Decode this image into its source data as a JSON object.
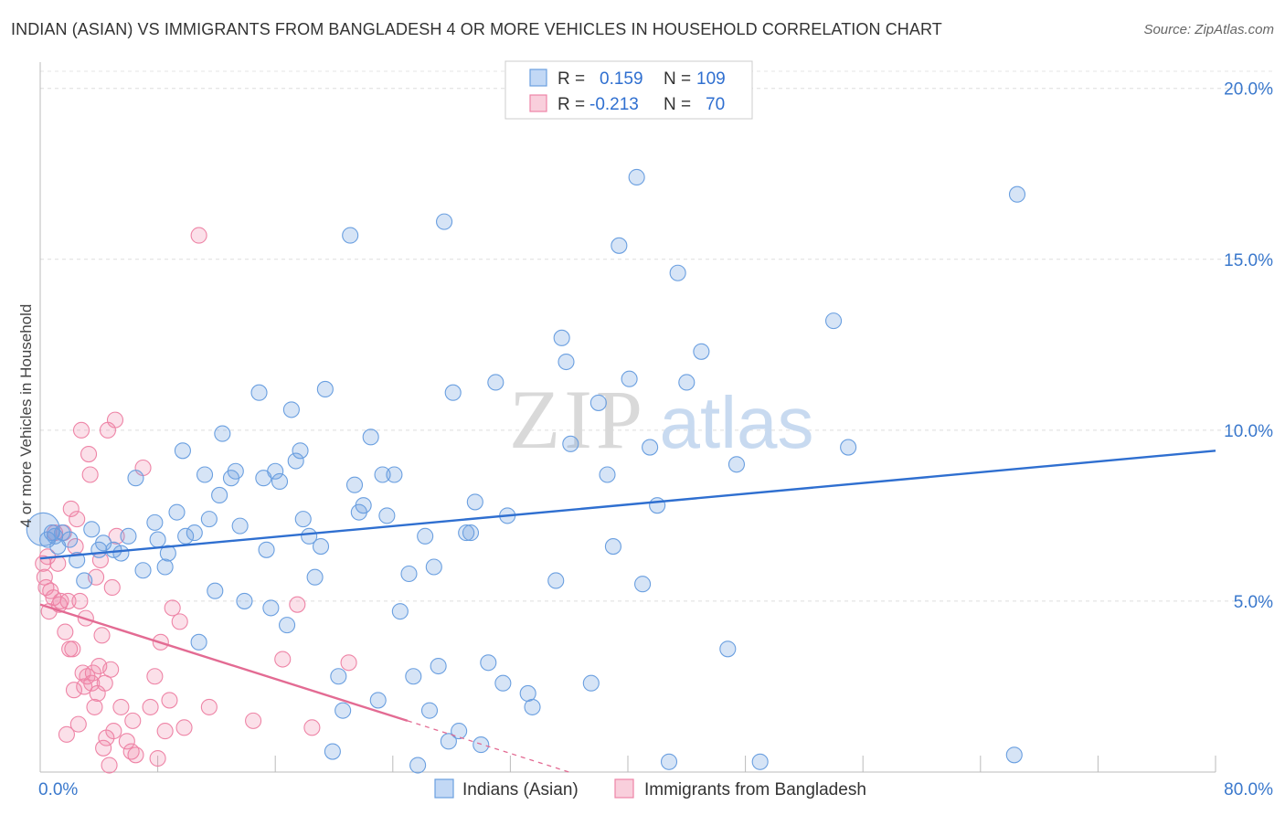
{
  "title": "INDIAN (ASIAN) VS IMMIGRANTS FROM BANGLADESH 4 OR MORE VEHICLES IN HOUSEHOLD CORRELATION CHART",
  "source": "Source: ZipAtlas.com",
  "watermark": {
    "zip": "ZIP",
    "atlas": "atlas"
  },
  "stats_legend": {
    "rows": [
      {
        "r_label": "R =",
        "r_value": "0.159",
        "n_label": "N =",
        "n_value": "109",
        "color": "#6a9fe0"
      },
      {
        "r_label": "R =",
        "r_value": "-0.213",
        "n_label": "N =",
        "n_value": "70",
        "color": "#ee84a6"
      }
    ]
  },
  "bottom_legend": [
    {
      "label": "Indians (Asian)",
      "color": "#6a9fe0"
    },
    {
      "label": "Immigrants from Bangladesh",
      "color": "#ee84a6"
    }
  ],
  "chart_data": {
    "type": "scatter",
    "xlabel": "",
    "ylabel": "4 or more Vehicles in Household",
    "xlim": [
      0,
      80
    ],
    "ylim": [
      0,
      20.5
    ],
    "x_tick_labels": [
      {
        "value": 0,
        "label": "0.0%"
      },
      {
        "value": 80,
        "label": "80.0%"
      }
    ],
    "y_tick_labels": [
      {
        "value": 5,
        "label": "5.0%"
      },
      {
        "value": 10,
        "label": "10.0%"
      },
      {
        "value": 15,
        "label": "15.0%"
      },
      {
        "value": 20,
        "label": "20.0%"
      }
    ],
    "colors": {
      "blue": "#6a9fe0",
      "pink": "#ee84a6",
      "blue_line": "#2f6fd0",
      "pink_line": "#e36b93"
    },
    "series": [
      {
        "name": "Indians (Asian)",
        "color": "#6a9fe0",
        "trend": {
          "x0": 0,
          "y0": 6.25,
          "x1": 80,
          "y1": 9.4
        },
        "points": [
          [
            0.2,
            7.1
          ],
          [
            0.5,
            6.8
          ],
          [
            0.8,
            7.0
          ],
          [
            1.0,
            6.9
          ],
          [
            1.2,
            6.6
          ],
          [
            1.5,
            7.0
          ],
          [
            2.0,
            6.8
          ],
          [
            2.5,
            6.2
          ],
          [
            3.0,
            5.6
          ],
          [
            3.5,
            7.1
          ],
          [
            4.0,
            6.5
          ],
          [
            4.3,
            6.7
          ],
          [
            5.0,
            6.5
          ],
          [
            5.5,
            6.4
          ],
          [
            6.0,
            6.9
          ],
          [
            6.5,
            8.6
          ],
          [
            7.0,
            5.9
          ],
          [
            7.8,
            7.3
          ],
          [
            8.0,
            6.8
          ],
          [
            8.5,
            6.0
          ],
          [
            8.7,
            6.4
          ],
          [
            9.3,
            7.6
          ],
          [
            9.7,
            9.4
          ],
          [
            9.9,
            6.9
          ],
          [
            10.5,
            7.0
          ],
          [
            10.8,
            3.8
          ],
          [
            11.5,
            7.4
          ],
          [
            11.9,
            5.3
          ],
          [
            12.2,
            8.1
          ],
          [
            12.4,
            9.9
          ],
          [
            13.0,
            8.6
          ],
          [
            13.3,
            8.8
          ],
          [
            13.6,
            7.2
          ],
          [
            13.9,
            5.0
          ],
          [
            14.9,
            11.1
          ],
          [
            15.2,
            8.6
          ],
          [
            15.4,
            6.5
          ],
          [
            15.7,
            4.8
          ],
          [
            16.0,
            8.8
          ],
          [
            16.3,
            8.5
          ],
          [
            16.8,
            4.3
          ],
          [
            17.1,
            10.6
          ],
          [
            17.4,
            9.1
          ],
          [
            17.7,
            9.4
          ],
          [
            17.9,
            7.4
          ],
          [
            18.3,
            6.9
          ],
          [
            18.7,
            5.7
          ],
          [
            19.1,
            6.6
          ],
          [
            19.4,
            11.2
          ],
          [
            19.9,
            0.6
          ],
          [
            20.3,
            2.8
          ],
          [
            20.6,
            1.8
          ],
          [
            21.1,
            15.7
          ],
          [
            21.4,
            8.4
          ],
          [
            21.7,
            7.6
          ],
          [
            22.0,
            7.8
          ],
          [
            22.5,
            9.8
          ],
          [
            23.0,
            2.1
          ],
          [
            23.3,
            8.7
          ],
          [
            23.6,
            7.5
          ],
          [
            24.1,
            8.7
          ],
          [
            24.5,
            4.7
          ],
          [
            25.1,
            5.8
          ],
          [
            25.4,
            2.8
          ],
          [
            25.7,
            0.2
          ],
          [
            26.2,
            6.9
          ],
          [
            26.5,
            1.8
          ],
          [
            26.8,
            6.0
          ],
          [
            27.1,
            3.1
          ],
          [
            27.5,
            16.1
          ],
          [
            27.8,
            0.9
          ],
          [
            28.1,
            11.1
          ],
          [
            28.5,
            1.2
          ],
          [
            29.0,
            7.0
          ],
          [
            29.3,
            7.0
          ],
          [
            29.6,
            7.9
          ],
          [
            30.0,
            0.8
          ],
          [
            30.5,
            3.2
          ],
          [
            31.0,
            11.4
          ],
          [
            31.5,
            2.6
          ],
          [
            31.8,
            7.5
          ],
          [
            33.2,
            2.3
          ],
          [
            33.5,
            1.9
          ],
          [
            35.1,
            5.6
          ],
          [
            35.5,
            12.7
          ],
          [
            35.8,
            12.0
          ],
          [
            36.1,
            9.6
          ],
          [
            37.5,
            2.6
          ],
          [
            38.0,
            10.8
          ],
          [
            38.6,
            8.7
          ],
          [
            39.0,
            6.6
          ],
          [
            39.4,
            15.4
          ],
          [
            40.1,
            11.5
          ],
          [
            40.6,
            17.4
          ],
          [
            41.0,
            5.5
          ],
          [
            41.5,
            9.5
          ],
          [
            42.0,
            7.8
          ],
          [
            42.8,
            0.3
          ],
          [
            43.4,
            14.6
          ],
          [
            44.0,
            11.4
          ],
          [
            45.0,
            12.3
          ],
          [
            46.8,
            3.6
          ],
          [
            47.4,
            9.0
          ],
          [
            49.0,
            0.3
          ],
          [
            54.0,
            13.2
          ],
          [
            55.0,
            9.5
          ],
          [
            66.3,
            0.5
          ],
          [
            66.5,
            16.9
          ],
          [
            11.2,
            8.7
          ]
        ]
      },
      {
        "name": "Immigrants from Bangladesh",
        "color": "#ee84a6",
        "trend": {
          "x0": 0,
          "y0": 4.9,
          "x1": 25,
          "y1": 1.5,
          "dash_x1": 36,
          "dash_y1": 0.0
        },
        "points": [
          [
            0.2,
            6.1
          ],
          [
            0.3,
            5.7
          ],
          [
            0.4,
            5.4
          ],
          [
            0.5,
            6.3
          ],
          [
            0.6,
            4.7
          ],
          [
            0.7,
            5.3
          ],
          [
            0.9,
            5.1
          ],
          [
            1.0,
            7.0
          ],
          [
            1.2,
            6.1
          ],
          [
            1.3,
            4.9
          ],
          [
            1.4,
            5.0
          ],
          [
            1.6,
            7.0
          ],
          [
            1.7,
            4.1
          ],
          [
            1.8,
            1.1
          ],
          [
            1.9,
            5.0
          ],
          [
            2.0,
            3.6
          ],
          [
            2.1,
            7.7
          ],
          [
            2.2,
            3.6
          ],
          [
            2.3,
            2.4
          ],
          [
            2.4,
            6.6
          ],
          [
            2.5,
            7.4
          ],
          [
            2.6,
            1.4
          ],
          [
            2.7,
            5.0
          ],
          [
            2.8,
            10.0
          ],
          [
            2.9,
            2.9
          ],
          [
            3.0,
            2.5
          ],
          [
            3.1,
            4.5
          ],
          [
            3.2,
            2.8
          ],
          [
            3.3,
            9.3
          ],
          [
            3.4,
            8.7
          ],
          [
            3.5,
            2.6
          ],
          [
            3.6,
            2.9
          ],
          [
            3.7,
            1.9
          ],
          [
            3.8,
            5.7
          ],
          [
            3.9,
            2.3
          ],
          [
            4.0,
            3.1
          ],
          [
            4.1,
            6.2
          ],
          [
            4.2,
            4.0
          ],
          [
            4.3,
            0.7
          ],
          [
            4.4,
            2.6
          ],
          [
            4.5,
            1.0
          ],
          [
            4.6,
            10.0
          ],
          [
            4.7,
            0.2
          ],
          [
            4.8,
            3.0
          ],
          [
            4.9,
            5.4
          ],
          [
            5.0,
            1.2
          ],
          [
            5.1,
            10.3
          ],
          [
            5.2,
            6.9
          ],
          [
            5.5,
            1.9
          ],
          [
            5.9,
            0.9
          ],
          [
            6.2,
            0.6
          ],
          [
            6.3,
            1.5
          ],
          [
            6.5,
            0.5
          ],
          [
            7.0,
            8.9
          ],
          [
            7.5,
            1.9
          ],
          [
            7.8,
            2.8
          ],
          [
            8.0,
            0.4
          ],
          [
            8.2,
            3.8
          ],
          [
            8.5,
            1.2
          ],
          [
            8.8,
            2.1
          ],
          [
            9.0,
            4.8
          ],
          [
            9.5,
            4.4
          ],
          [
            9.8,
            1.3
          ],
          [
            10.8,
            15.7
          ],
          [
            11.5,
            1.9
          ],
          [
            14.5,
            1.5
          ],
          [
            16.5,
            3.3
          ],
          [
            17.5,
            4.9
          ],
          [
            18.5,
            1.3
          ],
          [
            21.0,
            3.2
          ]
        ]
      }
    ]
  }
}
